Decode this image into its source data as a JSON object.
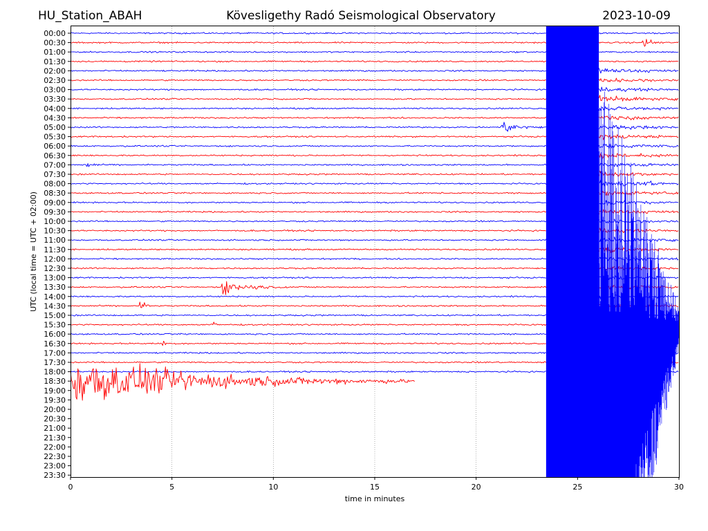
{
  "header": {
    "station": "HU_Station_ABAH",
    "observatory": "Kövesligethy Radó Seismological Observatory",
    "date": "2023-10-09"
  },
  "chart_data": {
    "type": "line",
    "title": "Kövesligethy Radó Seismological Observatory",
    "xlabel": "time in minutes",
    "ylabel": "UTC (local time = UTC + 02:00)",
    "xlim": [
      0,
      30
    ],
    "xticks": [
      0,
      5,
      10,
      15,
      20,
      25,
      30
    ],
    "grid_x": [
      5,
      10,
      15,
      20,
      25
    ],
    "row_labels": [
      "00:00",
      "00:30",
      "01:00",
      "01:30",
      "02:00",
      "02:30",
      "03:00",
      "03:30",
      "04:00",
      "04:30",
      "05:00",
      "05:30",
      "06:00",
      "06:30",
      "07:00",
      "07:30",
      "08:00",
      "08:30",
      "09:00",
      "09:30",
      "10:00",
      "10:30",
      "11:00",
      "11:30",
      "12:00",
      "12:30",
      "13:00",
      "13:30",
      "14:00",
      "14:30",
      "15:00",
      "15:30",
      "16:00",
      "16:30",
      "17:00",
      "17:30",
      "18:00",
      "18:30",
      "19:00",
      "19:30",
      "20:00",
      "20:30",
      "21:00",
      "21:30",
      "22:00",
      "22:30",
      "23:00",
      "23:30"
    ],
    "series_colors": [
      "#0000ff",
      "#ff0000"
    ],
    "recorded_rows": 38,
    "last_row_end_minute": 17.0,
    "base_noise": 0.06,
    "events": [
      {
        "row": 1,
        "minute": 28.2,
        "amp": 0.55,
        "dur": 1.2
      },
      {
        "row": 10,
        "minute": 21.2,
        "amp": 0.5,
        "dur": 2.4
      },
      {
        "row": 14,
        "minute": 0.8,
        "amp": 0.3,
        "dur": 0.8
      },
      {
        "row": 16,
        "minute": 28.4,
        "amp": 0.3,
        "dur": 1.2
      },
      {
        "row": 23,
        "minute": 26.3,
        "amp": 0.45,
        "dur": 2.0
      },
      {
        "row": 27,
        "minute": 7.4,
        "amp": 0.6,
        "dur": 3.5
      },
      {
        "row": 29,
        "minute": 3.4,
        "amp": 0.45,
        "dur": 0.8
      },
      {
        "row": 31,
        "minute": 6.9,
        "amp": 0.3,
        "dur": 0.8
      },
      {
        "row": 33,
        "minute": 4.5,
        "amp": 0.25,
        "dur": 0.8
      },
      {
        "row": 37,
        "minute": 0.0,
        "amp": 2.2,
        "dur": 17.0
      }
    ],
    "saturated_block": {
      "from_minute": 23.45,
      "to_minute": 26.05,
      "from_row": 0,
      "to_row": 47.6
    },
    "coda": {
      "from_minute": 26.05,
      "to_minute": 30.0,
      "rows_from": 4,
      "rows_to": 47.6
    }
  }
}
